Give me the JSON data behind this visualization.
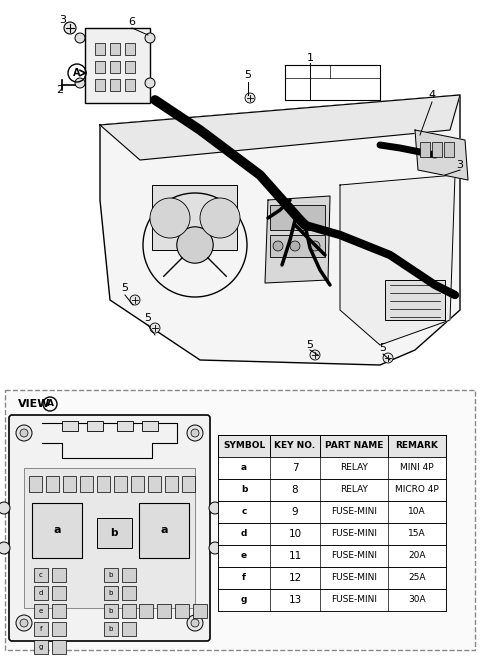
{
  "title": "",
  "bg_color": "#ffffff",
  "fig_width": 4.8,
  "fig_height": 6.61,
  "dpi": 100,
  "view_a_label": "VIEW",
  "view_a_circle": "A",
  "table_headers": [
    "SYMBOL",
    "KEY NO.",
    "PART NAME",
    "REMARK"
  ],
  "table_rows": [
    [
      "a",
      "7",
      "RELAY",
      "MINI 4P"
    ],
    [
      "b",
      "8",
      "RELAY",
      "MICRO 4P"
    ],
    [
      "c",
      "9",
      "FUSE-MINI",
      "10A"
    ],
    [
      "d",
      "10",
      "FUSE-MINI",
      "15A"
    ],
    [
      "e",
      "11",
      "FUSE-MINI",
      "20A"
    ],
    [
      "f",
      "12",
      "FUSE-MINI",
      "25A"
    ],
    [
      "g",
      "13",
      "FUSE-MINI",
      "30A"
    ]
  ],
  "part_numbers_top": [
    "1",
    "2",
    "3",
    "4",
    "5",
    "6"
  ],
  "line_color": "#000000",
  "light_gray": "#cccccc",
  "medium_gray": "#888888",
  "dark_color": "#222222",
  "dashed_border_color": "#888888"
}
